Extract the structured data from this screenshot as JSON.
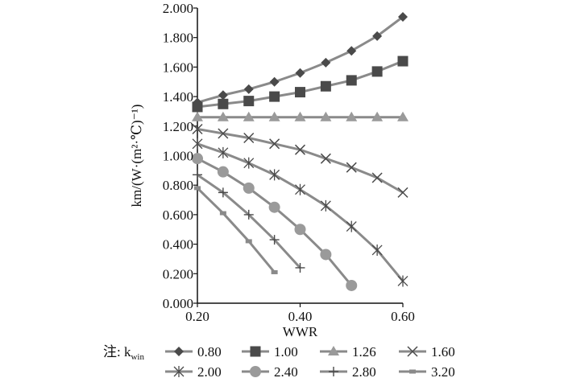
{
  "chart_data": {
    "type": "line",
    "xlabel": "WWR",
    "ylabel": "km/(W·(m²·℃)⁻¹)",
    "xlim": [
      0.2,
      0.6
    ],
    "ylim": [
      0,
      2.0
    ],
    "xticks": [
      0.2,
      0.4,
      0.6
    ],
    "xtick_labels": [
      "0.20",
      "0.40",
      "0.60"
    ],
    "yticks": [
      0,
      0.2,
      0.4,
      0.6,
      0.8,
      1.0,
      1.2,
      1.4,
      1.6,
      1.8,
      2.0
    ],
    "ytick_labels": [
      "0.000",
      "0.200",
      "0.400",
      "0.600",
      "0.800",
      "1.000",
      "1.200",
      "1.400",
      "1.600",
      "1.800",
      "2.000"
    ],
    "grid": false,
    "legend_position": "bottom",
    "legend_prefix": "注: k",
    "legend_prefix_sub": "win",
    "series": [
      {
        "name": "0.80",
        "marker": "diamond",
        "x": [
          0.2,
          0.25,
          0.3,
          0.35,
          0.4,
          0.45,
          0.5,
          0.55,
          0.6
        ],
        "y": [
          1.36,
          1.41,
          1.45,
          1.5,
          1.56,
          1.63,
          1.71,
          1.81,
          1.94
        ]
      },
      {
        "name": "1.00",
        "marker": "square",
        "x": [
          0.2,
          0.25,
          0.3,
          0.35,
          0.4,
          0.45,
          0.5,
          0.55,
          0.6
        ],
        "y": [
          1.33,
          1.35,
          1.37,
          1.4,
          1.43,
          1.47,
          1.51,
          1.57,
          1.64
        ]
      },
      {
        "name": "1.26",
        "marker": "triangle",
        "x": [
          0.2,
          0.25,
          0.3,
          0.35,
          0.4,
          0.45,
          0.5,
          0.55,
          0.6
        ],
        "y": [
          1.26,
          1.26,
          1.26,
          1.26,
          1.26,
          1.26,
          1.26,
          1.26,
          1.26
        ]
      },
      {
        "name": "1.60",
        "marker": "x",
        "x": [
          0.2,
          0.25,
          0.3,
          0.35,
          0.4,
          0.45,
          0.5,
          0.55,
          0.6
        ],
        "y": [
          1.18,
          1.15,
          1.12,
          1.08,
          1.04,
          0.98,
          0.92,
          0.85,
          0.75
        ]
      },
      {
        "name": "2.00",
        "marker": "star",
        "x": [
          0.2,
          0.25,
          0.3,
          0.35,
          0.4,
          0.45,
          0.5,
          0.55,
          0.6
        ],
        "y": [
          1.08,
          1.02,
          0.95,
          0.87,
          0.77,
          0.66,
          0.52,
          0.36,
          0.15
        ]
      },
      {
        "name": "2.40",
        "marker": "circle",
        "x": [
          0.2,
          0.25,
          0.3,
          0.35,
          0.4,
          0.45,
          0.5
        ],
        "y": [
          0.98,
          0.89,
          0.78,
          0.65,
          0.5,
          0.33,
          0.12
        ]
      },
      {
        "name": "2.80",
        "marker": "plus",
        "x": [
          0.2,
          0.25,
          0.3,
          0.35,
          0.4
        ],
        "y": [
          0.87,
          0.75,
          0.6,
          0.43,
          0.24
        ]
      },
      {
        "name": "3.20",
        "marker": "dash",
        "x": [
          0.2,
          0.25,
          0.3,
          0.35
        ],
        "y": [
          0.78,
          0.61,
          0.42,
          0.21
        ]
      }
    ],
    "colors": {
      "line": "#8a8a8a",
      "marker": "#4a4a4a",
      "axis": "#111111"
    }
  }
}
